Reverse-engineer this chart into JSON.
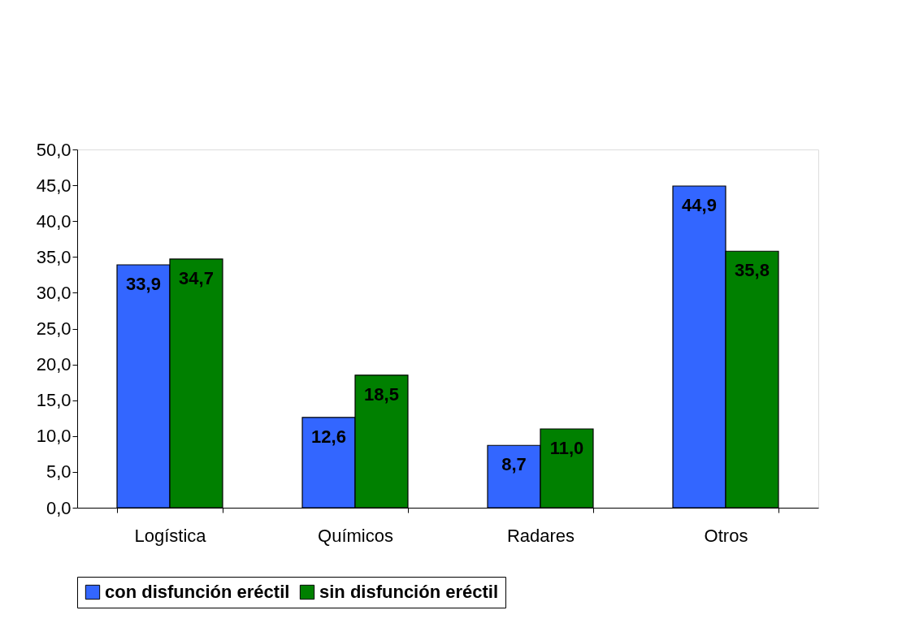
{
  "chart_data": {
    "type": "bar",
    "categories": [
      "Logística",
      "Químicos",
      "Radares",
      "Otros"
    ],
    "series": [
      {
        "name": "con disfunción eréctil",
        "color": "#3366ff",
        "values": [
          33.9,
          12.6,
          8.7,
          44.9
        ],
        "value_labels": [
          "33,9",
          "12,6",
          "8,7",
          "44,9"
        ]
      },
      {
        "name": "sin disfunción eréctil",
        "color": "#008000",
        "values": [
          34.7,
          18.5,
          11.0,
          35.8
        ],
        "value_labels": [
          "34,7",
          "18,5",
          "11,0",
          "35,8"
        ]
      }
    ],
    "ylim": [
      0,
      50
    ],
    "yticks": [
      {
        "value": 0,
        "label": "0,0"
      },
      {
        "value": 5,
        "label": "5,0"
      },
      {
        "value": 10,
        "label": "10,0"
      },
      {
        "value": 15,
        "label": "15,0"
      },
      {
        "value": 20,
        "label": "20,0"
      },
      {
        "value": 25,
        "label": "25,0"
      },
      {
        "value": 30,
        "label": "30,0"
      },
      {
        "value": 35,
        "label": "35,0"
      },
      {
        "value": 40,
        "label": "40,0"
      },
      {
        "value": 45,
        "label": "45,0"
      },
      {
        "value": 50,
        "label": "50,0"
      }
    ],
    "grid": false,
    "legend": "bottom"
  }
}
